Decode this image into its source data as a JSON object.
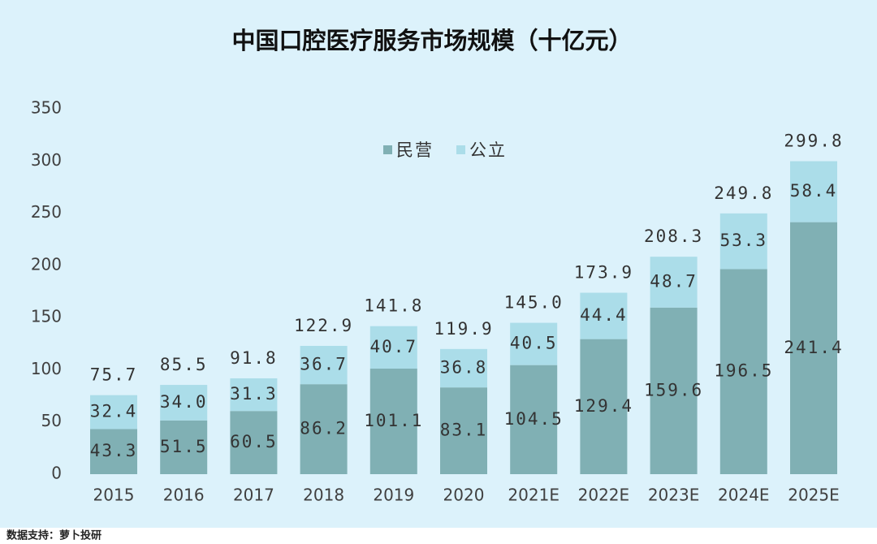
{
  "chart_data": {
    "type": "stacked-bar",
    "title": "中国口腔医疗服务市场规模（十亿元）",
    "categories": [
      "2015",
      "2016",
      "2017",
      "2018",
      "2019",
      "2020",
      "2021E",
      "2022E",
      "2023E",
      "2024E",
      "2025E"
    ],
    "series": [
      {
        "name": "民营",
        "color": "#80b0b4",
        "values": [
          43.3,
          51.5,
          60.5,
          86.2,
          101.1,
          83.1,
          104.5,
          129.4,
          159.6,
          196.5,
          241.4
        ],
        "value_labels": [
          "43.3",
          "51.5",
          "60.5",
          "86.2",
          "101.1",
          "83.1",
          "104.5",
          "129.4",
          "159.6",
          "196.5",
          "241.4"
        ]
      },
      {
        "name": "公立",
        "color": "#abdde9",
        "values": [
          32.4,
          34.0,
          31.3,
          36.7,
          40.7,
          36.8,
          40.5,
          44.4,
          48.7,
          53.3,
          58.4
        ],
        "value_labels": [
          "32.4",
          "34.0",
          "31.3",
          "36.7",
          "40.7",
          "36.8",
          "40.5",
          "44.4",
          "48.7",
          "53.3",
          "58.4"
        ]
      }
    ],
    "totals": {
      "values": [
        75.7,
        85.5,
        91.8,
        122.9,
        141.8,
        119.9,
        145.0,
        173.9,
        208.3,
        249.8,
        299.8
      ],
      "value_labels": [
        "75.7",
        "85.5",
        "91.8",
        "122.9",
        "141.8",
        "119.9",
        "145.0",
        "173.9",
        "208.3",
        "249.8",
        "299.8"
      ]
    },
    "ylim": [
      0,
      350
    ],
    "yticks": [
      0,
      50,
      100,
      150,
      200,
      250,
      300,
      350
    ],
    "grid": false,
    "source": "数据支持：萝卜投研"
  }
}
